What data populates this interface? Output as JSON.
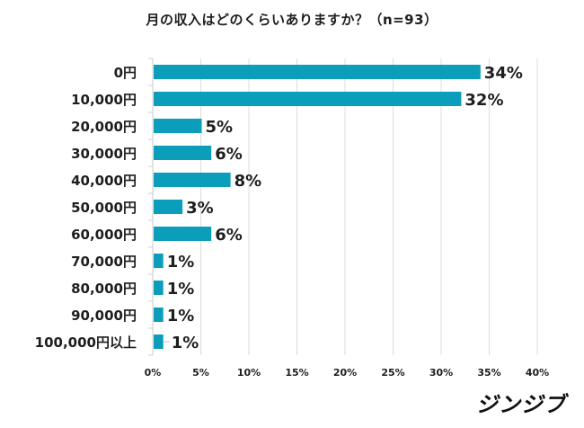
{
  "chart_data": {
    "type": "bar",
    "orientation": "horizontal",
    "title": "月の収入はどのくらいありますか？（n=93）",
    "categories": [
      "0円",
      "10,000円",
      "20,000円",
      "30,000円",
      "40,000円",
      "50,000円",
      "60,000円",
      "70,000円",
      "80,000円",
      "90,000円",
      "100,000円以上"
    ],
    "values": [
      34,
      32,
      5,
      6,
      8,
      3,
      6,
      1,
      1,
      1,
      1
    ],
    "value_labels": [
      "34%",
      "32%",
      "5%",
      "6%",
      "8%",
      "3%",
      "6%",
      "1%",
      "1%",
      "1%",
      "1%"
    ],
    "xlabel": "",
    "ylabel": "",
    "xlim": [
      0,
      40
    ],
    "xticks": [
      0,
      5,
      10,
      15,
      20,
      25,
      30,
      35,
      40
    ],
    "xtick_labels": [
      "0%",
      "5%",
      "10%",
      "15%",
      "20%",
      "25%",
      "30%",
      "35%",
      "40%"
    ],
    "grid": true,
    "bar_color": "#0a9ebb",
    "grid_color": "#dcdcdc"
  },
  "brand": {
    "logo_text": "ジンジブ"
  }
}
